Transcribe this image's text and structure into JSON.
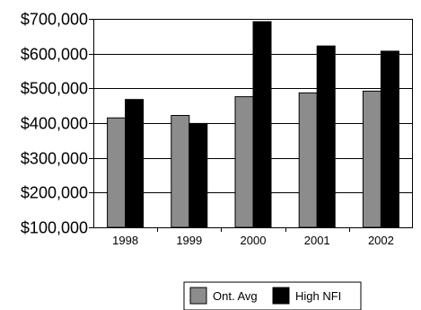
{
  "chart_data": {
    "type": "bar",
    "categories": [
      "1998",
      "1999",
      "2000",
      "2001",
      "2002"
    ],
    "series": [
      {
        "name": "Ont. Avg",
        "color": "#8c8c8c",
        "values": [
          415000,
          422000,
          476000,
          487000,
          492000
        ]
      },
      {
        "name": "High NFI",
        "color": "#000000",
        "values": [
          468000,
          399000,
          692000,
          622000,
          607000
        ]
      }
    ],
    "ylim": [
      100000,
      700000
    ],
    "yticks": [
      100000,
      200000,
      300000,
      400000,
      500000,
      600000,
      700000
    ],
    "ytick_labels": [
      "$100,000",
      "$200,000",
      "$300,000",
      "$400,000",
      "$500,000",
      "$600,000",
      "$700,000"
    ],
    "title": "",
    "xlabel": "",
    "ylabel": "",
    "grid": true,
    "legend_position": "bottom-right"
  }
}
